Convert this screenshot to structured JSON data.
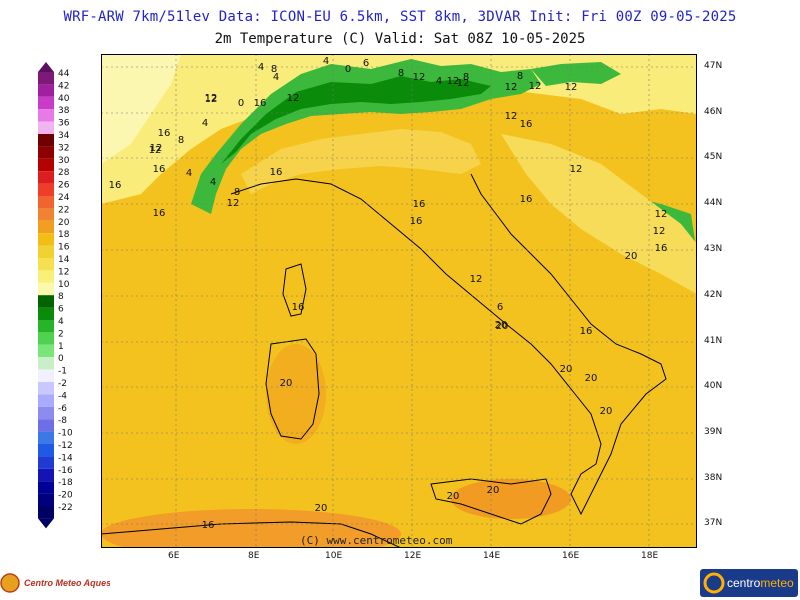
{
  "header": {
    "line1": "WRF-ARW 7km/51lev   Data: ICON-EU 6.5km, SST 8km, 3DVAR   Init: Fri 00Z 09-05-2025",
    "line2": "2m Temperature (C)  Valid: Sat 08Z 10-05-2025"
  },
  "legend": {
    "labels": [
      "44",
      "42",
      "40",
      "38",
      "36",
      "34",
      "32",
      "30",
      "28",
      "26",
      "24",
      "22",
      "20",
      "18",
      "16",
      "14",
      "12",
      "10",
      "8",
      "6",
      "4",
      "2",
      "1",
      "0",
      "-1",
      "-2",
      "-4",
      "-6",
      "-8",
      "-10",
      "-12",
      "-14",
      "-16",
      "-18",
      "-20",
      "-22"
    ],
    "colors": [
      "#7d1a78",
      "#a020a0",
      "#c83cc8",
      "#e67ae6",
      "#f0b4f0",
      "#6e0000",
      "#8c0000",
      "#b40000",
      "#dc1e1e",
      "#f03c28",
      "#f0642d",
      "#f08232",
      "#f0a01e",
      "#f0be14",
      "#f0d232",
      "#f5e150",
      "#faf078",
      "#fafaaa",
      "#006400",
      "#0a8c0a",
      "#28b428",
      "#50d250",
      "#78e678",
      "#c8f0c8",
      "#f0f0ff",
      "#c8c8ff",
      "#aaaaff",
      "#8c8cf0",
      "#6e6ee6",
      "#3c78e6",
      "#1e5ae6",
      "#1e3cd2",
      "#1414b4",
      "#000096",
      "#00007d",
      "#000064"
    ],
    "bottom_arrow_color": "#000064",
    "top_arrow_color": "#5a1060"
  },
  "axes": {
    "lat_labels": [
      "47N",
      "46N",
      "45N",
      "44N",
      "43N",
      "42N",
      "41N",
      "40N",
      "39N",
      "38N",
      "37N"
    ],
    "lon_labels": [
      "6E",
      "8E",
      "10E",
      "12E",
      "14E",
      "16E",
      "18E"
    ]
  },
  "contour_labels": [
    {
      "text": "4"
    },
    {
      "text": "4"
    },
    {
      "text": "8"
    },
    {
      "text": "4"
    },
    {
      "text": "0"
    },
    {
      "text": "6"
    },
    {
      "text": "8"
    },
    {
      "text": "12"
    },
    {
      "text": "12"
    },
    {
      "text": "4"
    },
    {
      "text": "12"
    },
    {
      "text": "12"
    },
    {
      "text": "8"
    },
    {
      "text": "8"
    },
    {
      "text": "12"
    },
    {
      "text": "12"
    },
    {
      "text": "0"
    },
    {
      "text": "16"
    },
    {
      "text": "12"
    },
    {
      "text": "12"
    },
    {
      "text": "16"
    },
    {
      "text": "12"
    },
    {
      "text": "4"
    },
    {
      "text": "16"
    },
    {
      "text": "8"
    },
    {
      "text": "12"
    },
    {
      "text": "4"
    },
    {
      "text": "16"
    },
    {
      "text": "16"
    },
    {
      "text": "4"
    },
    {
      "text": "12"
    },
    {
      "text": "16"
    },
    {
      "text": "8"
    },
    {
      "text": "16"
    },
    {
      "text": "12"
    },
    {
      "text": "16"
    },
    {
      "text": "12"
    },
    {
      "text": "12"
    },
    {
      "text": "12"
    },
    {
      "text": "16"
    },
    {
      "text": "16"
    },
    {
      "text": "20"
    },
    {
      "text": "16"
    },
    {
      "text": "12"
    },
    {
      "text": "20"
    },
    {
      "text": "6"
    },
    {
      "text": "20"
    },
    {
      "text": "16"
    },
    {
      "text": "20"
    },
    {
      "text": "20"
    },
    {
      "text": "20"
    },
    {
      "text": "20"
    },
    {
      "text": "20"
    },
    {
      "text": "16"
    },
    {
      "text": "20"
    },
    {
      "text": "20"
    },
    {
      "text": "12"
    },
    {
      "text": "16"
    }
  ],
  "copyright": "(C) www.centrometeo.com",
  "logo_left": {
    "text": "Centro Meteo Aquesio"
  },
  "logo_right": {
    "text_a": "centro",
    "text_b": "meteo"
  }
}
